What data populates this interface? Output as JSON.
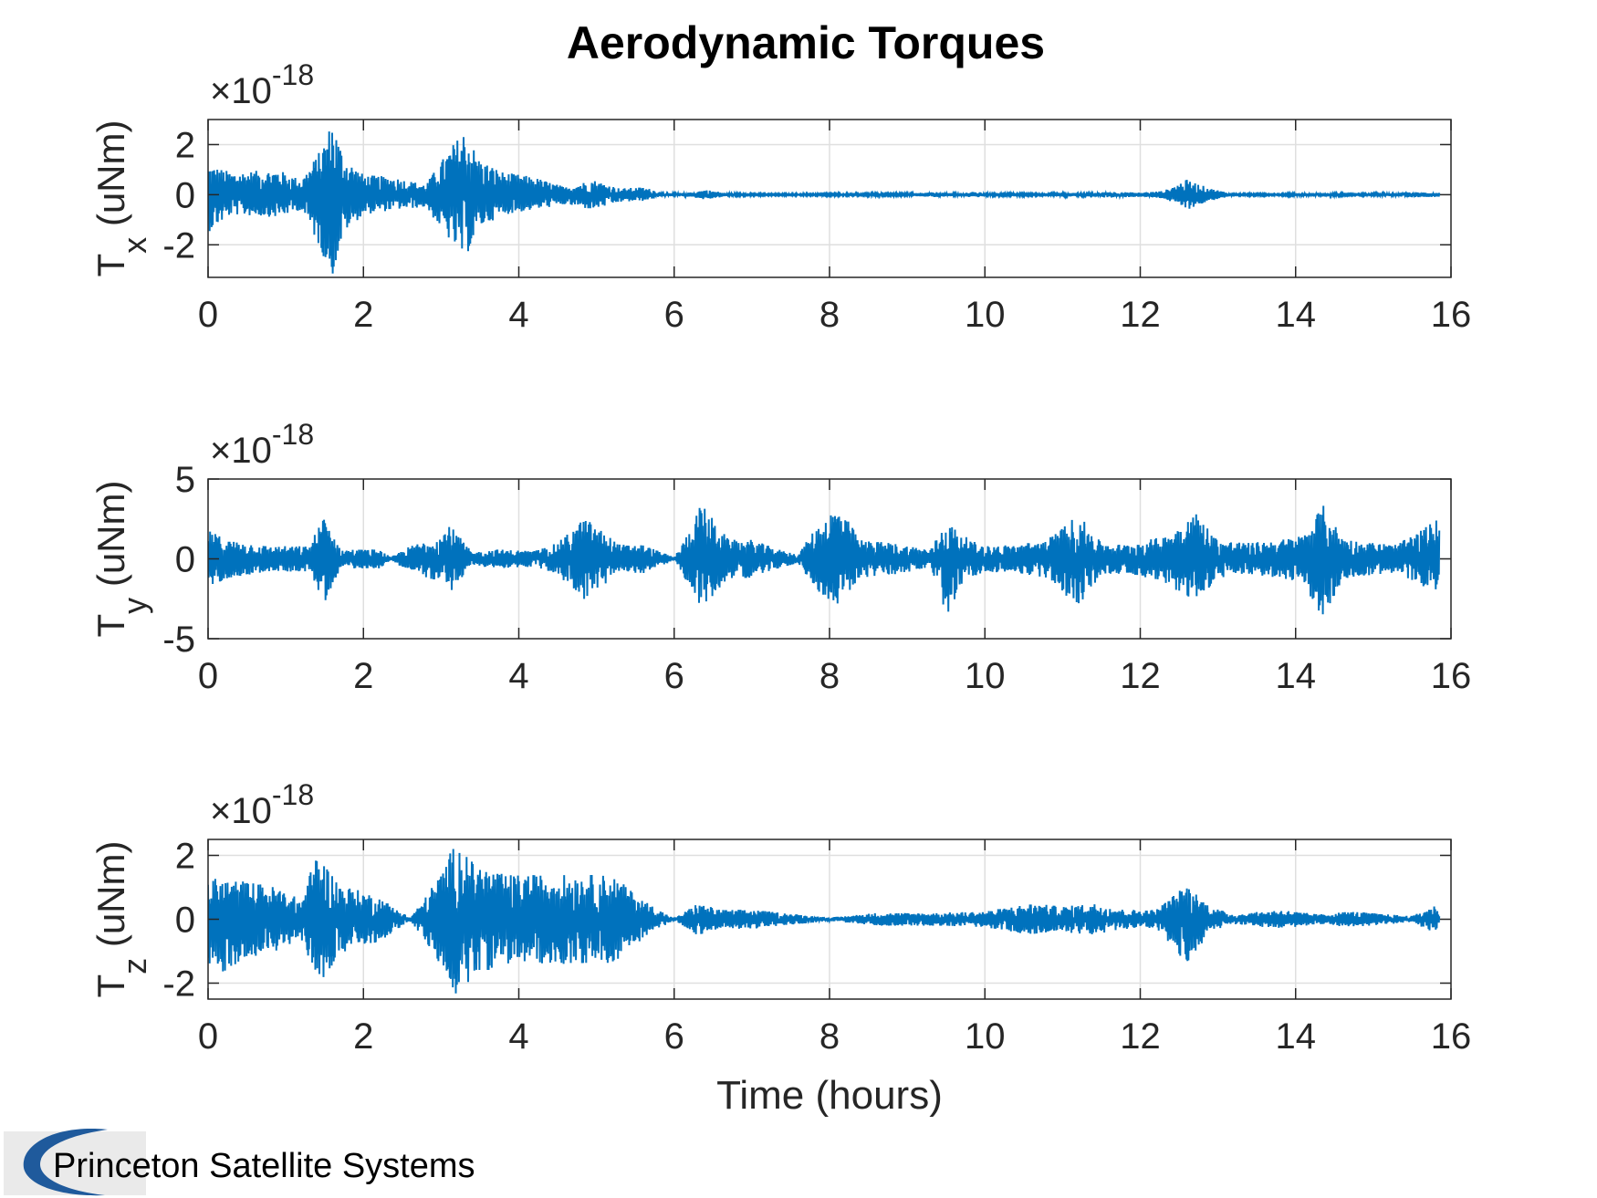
{
  "colors": {
    "series": "#0072BD",
    "grid": "#dfdfdf",
    "axis": "#262626",
    "logo_bg": "#eaeaea",
    "logo_swoosh": "#1f5a9c"
  },
  "logo": {
    "text": "Princeton Satellite Systems",
    "icon": "swoosh-logo-icon"
  },
  "chart_data": [
    {
      "type": "line",
      "title": "Aerodynamic Torques",
      "ylabel_main": "T",
      "ylabel_sub": "x",
      "ylabel_unit": " (uNm)",
      "xlabel": "",
      "exponent_prefix": "×10",
      "exponent_power": "-18",
      "xlim": [
        0,
        16
      ],
      "ylim": [
        -3.3,
        3.0
      ],
      "x_ticks": [
        "0",
        "2",
        "4",
        "6",
        "8",
        "10",
        "12",
        "14",
        "16"
      ],
      "y_ticks": [
        {
          "v": 2,
          "label": "2"
        },
        {
          "v": 0,
          "label": "0"
        },
        {
          "v": -2,
          "label": "-2"
        }
      ],
      "grid": true,
      "series": [
        {
          "x_end": 15.85,
          "envelope_hours": [
            0,
            0.3,
            0.9,
            1.2,
            1.45,
            1.6,
            1.75,
            2.0,
            2.4,
            2.8,
            3.1,
            3.3,
            3.5,
            3.8,
            4.2,
            4.6,
            4.95,
            5.3,
            5.6,
            5.9,
            6.2,
            6.4,
            6.7,
            7.2,
            8.0,
            9.0,
            9.4,
            9.6,
            9.9,
            10.0,
            10.3,
            10.8,
            11.0,
            11.3,
            11.6,
            12.0,
            12.3,
            12.6,
            12.9,
            13.2,
            13.8,
            14.3,
            14.7,
            15.2,
            15.5,
            15.85
          ],
          "envelope_upper": [
            1.2,
            0.9,
            1.0,
            0.6,
            1.8,
            3.0,
            1.5,
            0.8,
            0.7,
            0.4,
            1.8,
            2.6,
            1.4,
            0.9,
            0.7,
            0.3,
            0.6,
            0.25,
            0.3,
            0.05,
            0.08,
            0.2,
            0.05,
            0.03,
            0.04,
            0.05,
            0.1,
            0.05,
            0.12,
            0.05,
            0.05,
            0.03,
            0.08,
            0.05,
            0.12,
            0.08,
            0.15,
            0.6,
            0.25,
            0.04,
            0.03,
            0.08,
            0.03,
            0.05,
            0.1,
            0.08
          ],
          "envelope_lower": [
            -1.5,
            -0.8,
            -0.9,
            -0.6,
            -2.2,
            -3.3,
            -1.5,
            -0.8,
            -0.6,
            -0.5,
            -1.8,
            -2.6,
            -1.3,
            -0.8,
            -0.6,
            -0.4,
            -0.6,
            -0.3,
            -0.25,
            -0.05,
            -0.08,
            -0.2,
            -0.05,
            -0.03,
            -0.04,
            -0.05,
            -0.1,
            -0.05,
            -0.12,
            -0.05,
            -0.05,
            -0.03,
            -0.08,
            -0.05,
            -0.12,
            -0.08,
            -0.15,
            -0.6,
            -0.25,
            -0.04,
            -0.03,
            -0.08,
            -0.03,
            -0.05,
            -0.1,
            -0.08
          ]
        }
      ]
    },
    {
      "type": "line",
      "title": "",
      "ylabel_main": "T",
      "ylabel_sub": "y",
      "ylabel_unit": " (uNm)",
      "xlabel": "",
      "exponent_prefix": "×10",
      "exponent_power": "-18",
      "xlim": [
        0,
        16
      ],
      "ylim": [
        -5,
        5
      ],
      "x_ticks": [
        "0",
        "2",
        "4",
        "6",
        "8",
        "10",
        "12",
        "14",
        "16"
      ],
      "y_ticks": [
        {
          "v": 5,
          "label": "5"
        },
        {
          "v": 0,
          "label": "0"
        },
        {
          "v": -5,
          "label": "-5"
        }
      ],
      "grid": true,
      "series": [
        {
          "x_end": 15.85,
          "envelope_hours": [
            0,
            0.25,
            0.8,
            1.3,
            1.5,
            1.7,
            2.2,
            2.35,
            2.6,
            3.0,
            3.1,
            3.4,
            3.7,
            4.2,
            4.5,
            4.85,
            5.3,
            5.6,
            6.0,
            6.1,
            6.35,
            6.7,
            7.0,
            7.4,
            7.6,
            7.8,
            8.1,
            8.4,
            8.8,
            9.3,
            9.5,
            9.8,
            10.0,
            10.4,
            10.8,
            11.2,
            11.5,
            11.8,
            12.3,
            12.7,
            13.0,
            13.4,
            13.8,
            14.1,
            14.35,
            14.6,
            14.8,
            15.3,
            15.55,
            15.85
          ],
          "envelope_upper": [
            1.8,
            1.2,
            0.8,
            0.8,
            2.8,
            0.6,
            0.6,
            0.1,
            0.8,
            1.5,
            2.2,
            0.4,
            0.6,
            0.5,
            1.0,
            2.6,
            0.9,
            0.9,
            0.1,
            0.9,
            3.5,
            1.2,
            1.2,
            0.5,
            0.3,
            1.8,
            3.4,
            1.2,
            1.0,
            0.6,
            2.4,
            1.2,
            0.8,
            0.9,
            1.2,
            2.8,
            1.0,
            0.9,
            1.4,
            3.0,
            1.2,
            1.0,
            1.2,
            1.5,
            3.4,
            1.4,
            1.1,
            0.9,
            1.6,
            2.6
          ],
          "envelope_lower": [
            -1.8,
            -1.2,
            -0.8,
            -0.8,
            -2.8,
            -0.6,
            -0.6,
            -0.1,
            -0.8,
            -1.5,
            -2.2,
            -0.4,
            -0.6,
            -0.5,
            -1.0,
            -2.6,
            -0.9,
            -0.9,
            -0.1,
            -0.9,
            -3.2,
            -1.2,
            -1.2,
            -0.5,
            -0.3,
            -1.8,
            -3.0,
            -1.2,
            -1.0,
            -0.6,
            -3.6,
            -1.2,
            -0.8,
            -0.9,
            -1.2,
            -3.0,
            -1.0,
            -0.9,
            -1.4,
            -2.9,
            -1.2,
            -1.0,
            -1.2,
            -1.5,
            -3.8,
            -1.4,
            -1.1,
            -0.9,
            -1.6,
            -2.0
          ]
        }
      ]
    },
    {
      "type": "line",
      "title": "",
      "ylabel_main": "T",
      "ylabel_sub": "z",
      "ylabel_unit": " (uNm)",
      "xlabel": "Time (hours)",
      "exponent_prefix": "×10",
      "exponent_power": "-18",
      "xlim": [
        0,
        16
      ],
      "ylim": [
        -2.5,
        2.5
      ],
      "x_ticks": [
        "0",
        "2",
        "4",
        "6",
        "8",
        "10",
        "12",
        "14",
        "16"
      ],
      "y_ticks": [
        {
          "v": 2,
          "label": "2"
        },
        {
          "v": 0,
          "label": "0"
        },
        {
          "v": -2,
          "label": "-2"
        }
      ],
      "grid": true,
      "series": [
        {
          "x_end": 15.85,
          "envelope_hours": [
            0,
            0.5,
            0.9,
            1.2,
            1.4,
            1.7,
            2.2,
            2.6,
            2.8,
            3.0,
            3.2,
            3.4,
            3.8,
            4.5,
            5.2,
            5.6,
            6.0,
            6.3,
            6.6,
            7.0,
            7.6,
            8.0,
            8.6,
            9.4,
            10.0,
            10.6,
            11.0,
            11.4,
            11.8,
            12.2,
            12.6,
            12.9,
            13.2,
            13.8,
            14.3,
            14.7,
            15.2,
            15.5,
            15.85
          ],
          "envelope_upper": [
            1.3,
            1.2,
            1.0,
            0.6,
            2.1,
            1.1,
            0.7,
            0.05,
            0.7,
            1.5,
            2.5,
            1.8,
            1.4,
            1.4,
            1.4,
            0.6,
            0.02,
            0.5,
            0.3,
            0.3,
            0.15,
            0.05,
            0.2,
            0.2,
            0.25,
            0.5,
            0.4,
            0.5,
            0.3,
            0.3,
            1.1,
            0.4,
            0.15,
            0.3,
            0.15,
            0.25,
            0.15,
            0.1,
            0.5
          ],
          "envelope_lower": [
            -2.0,
            -1.2,
            -1.0,
            -0.6,
            -2.1,
            -1.1,
            -0.7,
            -0.05,
            -0.7,
            -1.5,
            -2.5,
            -1.8,
            -1.4,
            -1.4,
            -1.4,
            -0.6,
            -0.02,
            -0.5,
            -0.3,
            -0.3,
            -0.15,
            -0.05,
            -0.2,
            -0.2,
            -0.25,
            -0.5,
            -0.4,
            -0.5,
            -0.3,
            -0.3,
            -1.4,
            -0.4,
            -0.15,
            -0.3,
            -0.15,
            -0.25,
            -0.15,
            -0.1,
            -0.5
          ]
        }
      ]
    }
  ]
}
